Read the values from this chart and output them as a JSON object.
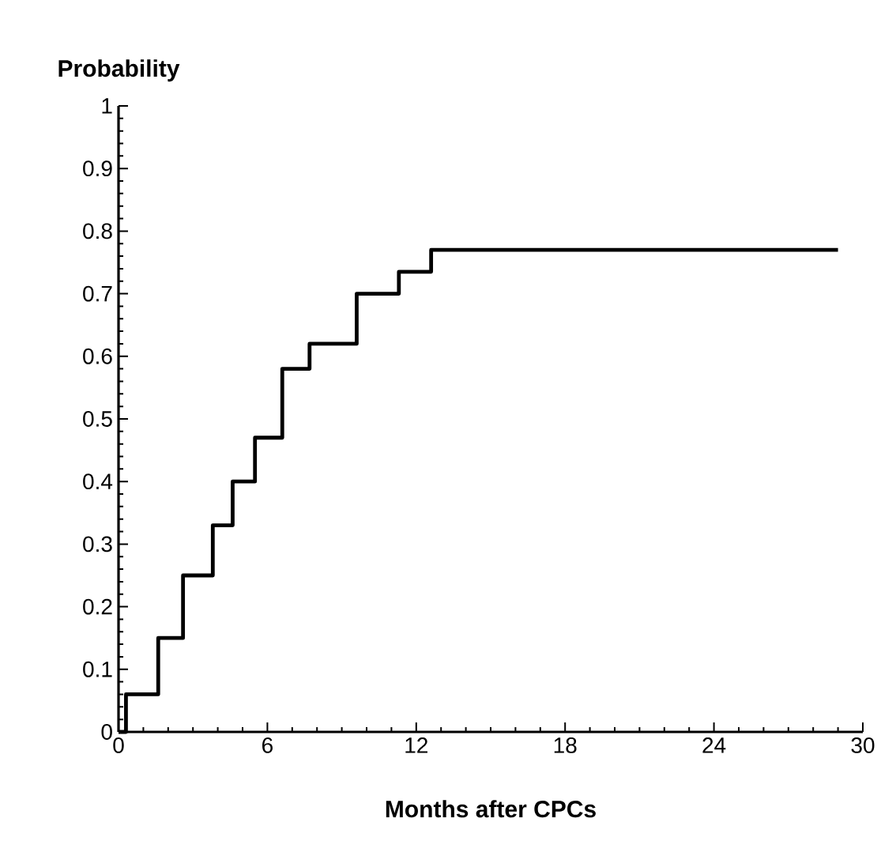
{
  "chart_data": {
    "type": "step",
    "xlabel": "Months after CPCs",
    "ylabel": "Probability",
    "x": [
      0,
      0.3,
      1.6,
      2.6,
      3.8,
      4.6,
      5.5,
      6.6,
      7.7,
      9.6,
      11.3,
      12.6,
      29
    ],
    "values": [
      0,
      0.06,
      0.15,
      0.25,
      0.33,
      0.4,
      0.47,
      0.58,
      0.62,
      0.7,
      0.735,
      0.77,
      0.77
    ],
    "color": "#000000",
    "xlim": [
      0,
      30
    ],
    "ylim": [
      0,
      1
    ],
    "xticks": [
      0,
      6,
      12,
      18,
      24,
      30
    ],
    "yticks": [
      0,
      0.1,
      0.2,
      0.3,
      0.4,
      0.5,
      0.6,
      0.7,
      0.8,
      0.9,
      1
    ],
    "grid": false,
    "marker": "none",
    "line_style": "solid"
  }
}
